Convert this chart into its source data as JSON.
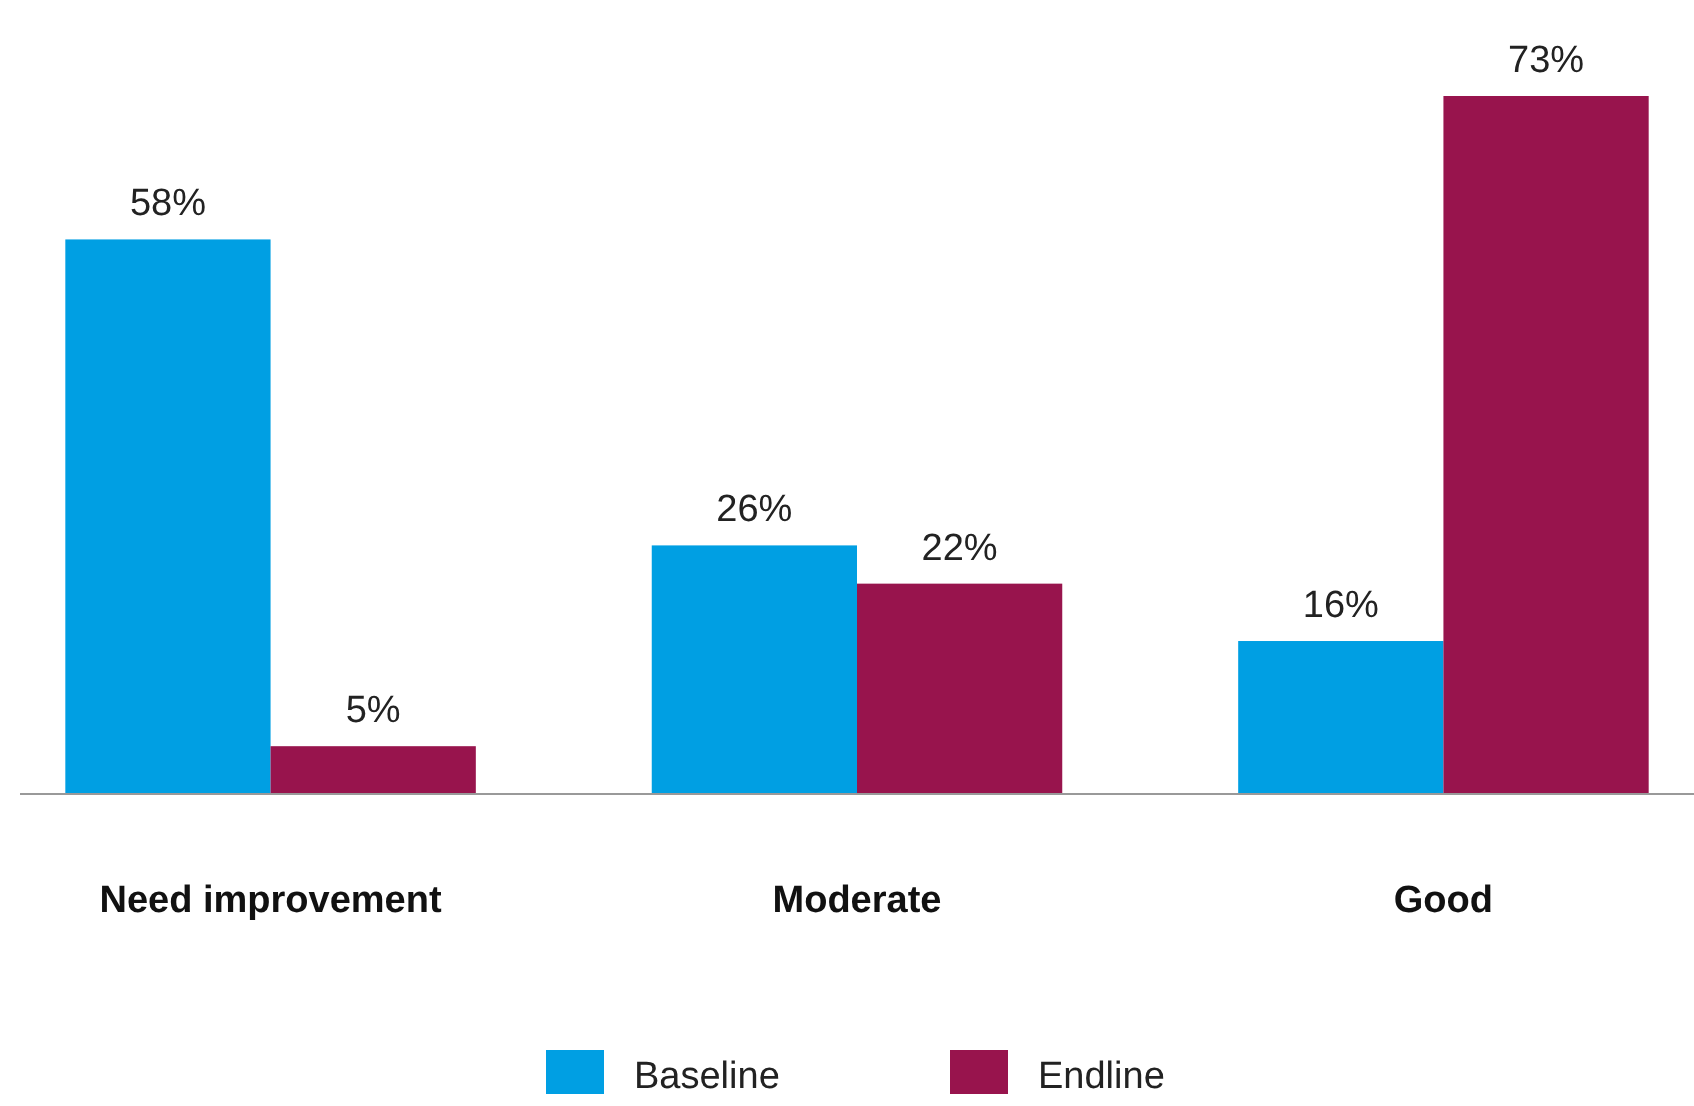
{
  "chart_data": {
    "type": "bar",
    "categories": [
      "Need improvement",
      "Moderate",
      "Good"
    ],
    "series": [
      {
        "name": "Baseline",
        "color": "#009fe3",
        "values": [
          58,
          26,
          16
        ],
        "value_labels": [
          "58%",
          "26%",
          "16%"
        ]
      },
      {
        "name": "Endline",
        "color": "#98144d",
        "values": [
          5,
          22,
          73
        ],
        "value_labels": [
          "5%",
          "22%",
          "73%"
        ]
      }
    ],
    "legend": "bottom"
  }
}
